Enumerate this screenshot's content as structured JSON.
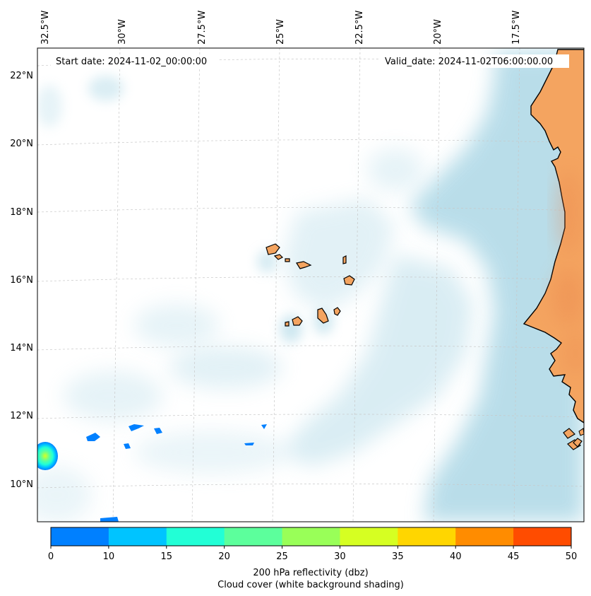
{
  "map": {
    "start_date": "Start date: 2024-11-02_00:00:00",
    "valid_date": "Valid_date: 2024-11-02T06:00:00.00",
    "lon_labels": [
      "32.5°W",
      "30°W",
      "27.5°W",
      "25°W",
      "22.5°W",
      "20°W",
      "17.5°W"
    ],
    "lat_labels": [
      "22°N",
      "20°N",
      "18°N",
      "16°N",
      "14°N",
      "12°N",
      "10°N"
    ],
    "colors": {
      "land": "#F4A460",
      "cloud": "#ADD8E6",
      "coastline": "#000000",
      "gridline": "#c8c8c8"
    }
  },
  "colorbar": {
    "ticks": [
      "0",
      "10",
      "15",
      "20",
      "25",
      "30",
      "35",
      "40",
      "45",
      "50"
    ],
    "colors": [
      "#0080FF",
      "#00C4FF",
      "#22FFD6",
      "#5CFF9C",
      "#99FF58",
      "#D6FF22",
      "#FFD600",
      "#FF8C00",
      "#FF4C00"
    ],
    "label": "200 hPa reflectivity (dbz)",
    "sublabel": "Cloud cover (white background shading)"
  }
}
